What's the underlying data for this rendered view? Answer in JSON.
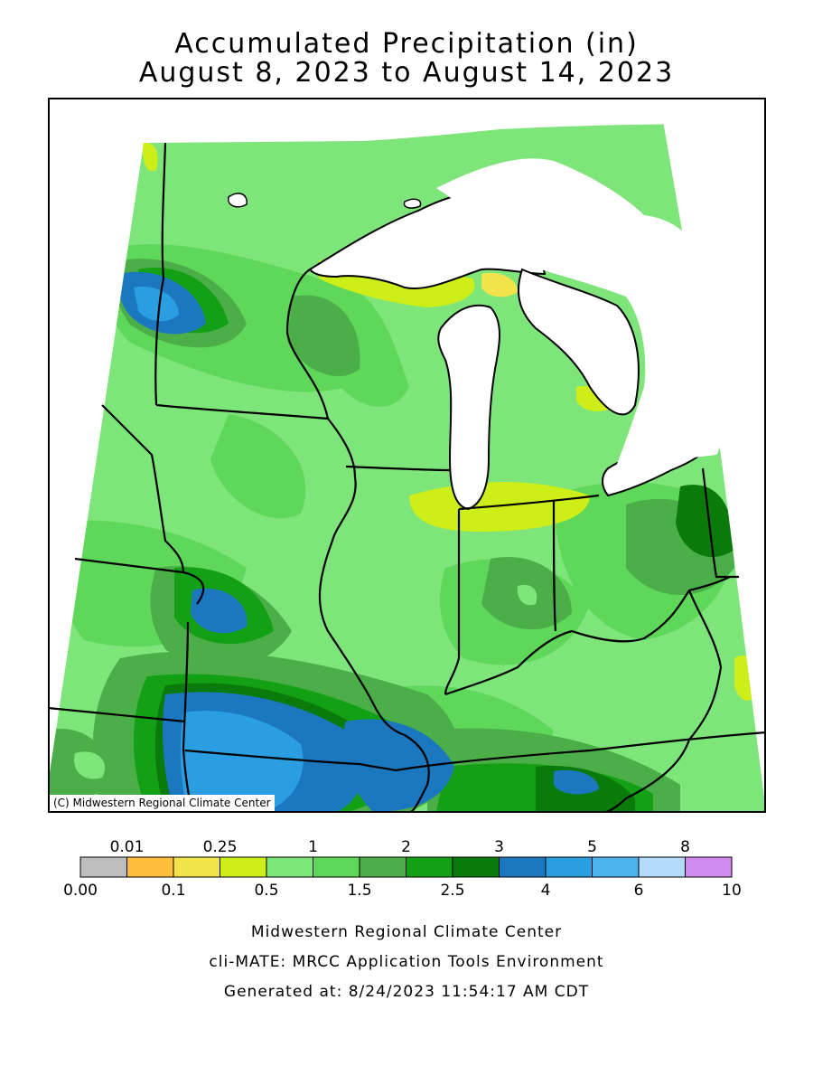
{
  "title": {
    "line1": "Accumulated Precipitation (in)",
    "line2": "August 8, 2023 to August 14, 2023"
  },
  "map": {
    "copyright": "(C) Midwestern Regional Climate Center",
    "land_color": "#7ee57a",
    "water_color": "#ffffff"
  },
  "legend": {
    "bins": [
      {
        "color": "#bdbdbd"
      },
      {
        "color": "#ffbe3c"
      },
      {
        "color": "#f2e34a"
      },
      {
        "color": "#cdee18"
      },
      {
        "color": "#7ee57a"
      },
      {
        "color": "#5fd75a"
      },
      {
        "color": "#4cae48"
      },
      {
        "color": "#14a014"
      },
      {
        "color": "#0a7a0a"
      },
      {
        "color": "#1b78bf"
      },
      {
        "color": "#2a9ee0"
      },
      {
        "color": "#4db4ee"
      },
      {
        "color": "#b4dcfa"
      },
      {
        "color": "#d28cf0"
      }
    ],
    "top_labels": [
      "0.01",
      "0.25",
      "1",
      "2",
      "3",
      "5",
      "8"
    ],
    "bottom_labels": [
      "0.00",
      "0.1",
      "0.5",
      "1.5",
      "2.5",
      "4",
      "6",
      "10"
    ]
  },
  "footer": {
    "line1": "Midwestern Regional Climate Center",
    "line2": "cli-MATE: MRCC Application Tools Environment",
    "line3": "Generated at: 8/24/2023 11:54:17 AM CDT"
  }
}
